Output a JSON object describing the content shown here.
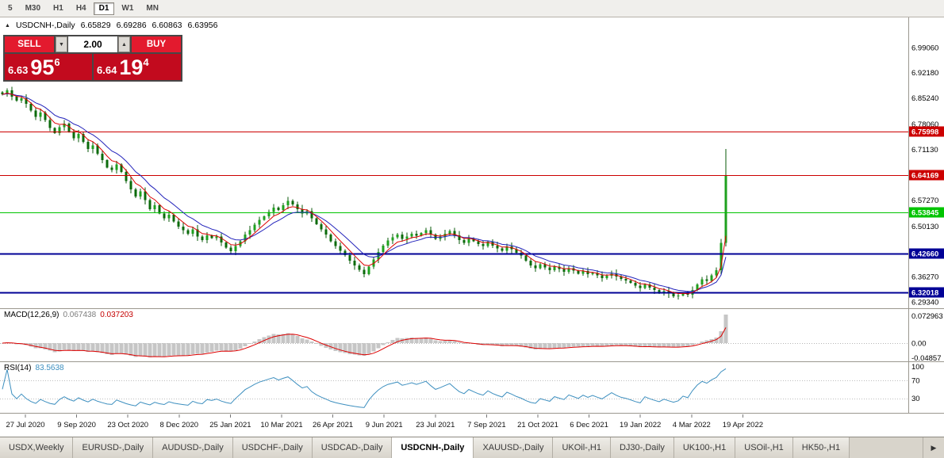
{
  "toolbar": {
    "timeframes": [
      "5",
      "M30",
      "H1",
      "H4",
      "D1",
      "W1",
      "MN"
    ],
    "active_index": 4
  },
  "header": {
    "arrow_icon": "▲",
    "symbol": "USDCNH-,Daily",
    "open": "6.65829",
    "high": "6.69286",
    "low": "6.60863",
    "close": "6.63956"
  },
  "trade_panel": {
    "sell_label": "SELL",
    "buy_label": "BUY",
    "volume": "2.00",
    "down_icon": "▼",
    "up_icon": "▲",
    "sell_price": {
      "main": "6.63",
      "big": "95",
      "sup": "6"
    },
    "buy_price": {
      "main": "6.64",
      "big": "19",
      "sup": "4"
    }
  },
  "indicators": {
    "macd": {
      "name": "MACD(12,26,9)",
      "v1": "0.067438",
      "v2": "0.037203"
    },
    "rsi": {
      "name": "RSI(14)",
      "value": "83.5638"
    }
  },
  "tabs": {
    "items": [
      "USDX,Weekly",
      "EURUSD-,Daily",
      "AUDUSD-,Daily",
      "USDCHF-,Daily",
      "USDCAD-,Daily",
      "USDCNH-,Daily",
      "XAUUSD-,Daily",
      "UKOil-,H1",
      "DJ30-,Daily",
      "UK100-,H1",
      "USOil-,H1",
      "HK50-,H1"
    ],
    "active_index": 5,
    "scroll_right_icon": "▶"
  },
  "chart_data": {
    "type": "candlestick",
    "symbol": "USDCNH-",
    "timeframe": "Daily",
    "ohlc_header": {
      "open": 6.65829,
      "high": 6.69286,
      "low": 6.60863,
      "close": 6.63956
    },
    "view_range": {
      "min": 6.276,
      "max": 7.073
    },
    "first_open": 6.868,
    "last_high": 6.712,
    "closes": [
      6.862,
      6.873,
      6.856,
      6.845,
      6.852,
      6.836,
      6.818,
      6.8,
      6.812,
      6.792,
      6.77,
      6.756,
      6.772,
      6.782,
      6.76,
      6.742,
      6.754,
      6.732,
      6.712,
      6.722,
      6.7,
      6.682,
      6.662,
      6.655,
      6.67,
      6.65,
      6.625,
      6.602,
      6.582,
      6.596,
      6.572,
      6.548,
      6.558,
      6.536,
      6.522,
      6.532,
      6.514,
      6.5,
      6.49,
      6.48,
      6.492,
      6.472,
      6.463,
      6.476,
      6.468,
      6.472,
      6.456,
      6.442,
      6.432,
      6.446,
      6.46,
      6.478,
      6.49,
      6.505,
      6.518,
      6.528,
      6.54,
      6.552,
      6.545,
      6.558,
      6.57,
      6.56,
      6.548,
      6.536,
      6.542,
      6.522,
      6.506,
      6.492,
      6.478,
      6.46,
      6.446,
      6.433,
      6.421,
      6.406,
      6.393,
      6.381,
      6.369,
      6.39,
      6.41,
      6.43,
      6.448,
      6.462,
      6.47,
      6.478,
      6.466,
      6.472,
      6.48,
      6.475,
      6.482,
      6.49,
      6.478,
      6.466,
      6.472,
      6.48,
      6.488,
      6.476,
      6.463,
      6.455,
      6.468,
      6.46,
      6.452,
      6.446,
      6.458,
      6.448,
      6.44,
      6.433,
      6.445,
      6.438,
      6.428,
      6.42,
      6.406,
      6.393,
      6.386,
      6.396,
      6.388,
      6.38,
      6.39,
      6.383,
      6.376,
      6.386,
      6.379,
      6.371,
      6.378,
      6.369,
      6.373,
      6.366,
      6.359,
      6.365,
      6.371,
      6.363,
      6.356,
      6.352,
      6.346,
      6.338,
      6.331,
      6.341,
      6.333,
      6.326,
      6.319,
      6.323,
      6.316,
      6.309,
      6.311,
      6.318,
      6.313,
      6.326,
      6.341,
      6.355,
      6.351,
      6.366,
      6.38,
      6.455,
      6.64
    ],
    "x_labels": [
      "27 Jul 2020",
      "9 Sep 2020",
      "23 Oct 2020",
      "8 Dec 2020",
      "25 Jan 2021",
      "10 Mar 2021",
      "26 Apr 2021",
      "9 Jun 2021",
      "23 Jul 2021",
      "7 Sep 2021",
      "21 Oct 2021",
      "6 Dec 2021",
      "19 Jan 2022",
      "4 Mar 2022",
      "19 Apr 2022"
    ],
    "y_axis_ticks": [
      "6.99060",
      "6.92180",
      "6.85240",
      "6.78060",
      "6.71130",
      "6.57270",
      "6.50130",
      "6.36270",
      "6.29340"
    ],
    "hlines": [
      {
        "price": "6.75998",
        "color": "#cc0000",
        "width": 1
      },
      {
        "price": "6.64169",
        "color": "#cc0000",
        "width": 1
      },
      {
        "price": "6.53845",
        "color": "#00c400",
        "width": 1
      },
      {
        "price": "6.42660",
        "color": "#000096",
        "width": 2
      },
      {
        "price": "6.32018",
        "color": "#000096",
        "width": 2
      }
    ],
    "indicators": {
      "macd": {
        "label": "MACD(12,26,9)",
        "final_macd": 0.067438,
        "final_signal": 0.037203,
        "axis": [
          "0.072963",
          "0.00",
          "-0.04857"
        ]
      },
      "rsi": {
        "label": "RSI(14)",
        "final_value": 83.5638,
        "axis": [
          "100",
          "70",
          "30"
        ],
        "levels": [
          70,
          30
        ]
      }
    },
    "colors": {
      "candle_up": "#1fa11f",
      "candle_down": "#0b6b0b",
      "candle_wick": "#0a5a0a",
      "ma_fast": "#dd0000",
      "ma_slow": "#2323bb",
      "macd_hist": "#c6c6c6",
      "macd_signal": "#dd0000",
      "rsi_line": "#3d8fbf"
    }
  }
}
